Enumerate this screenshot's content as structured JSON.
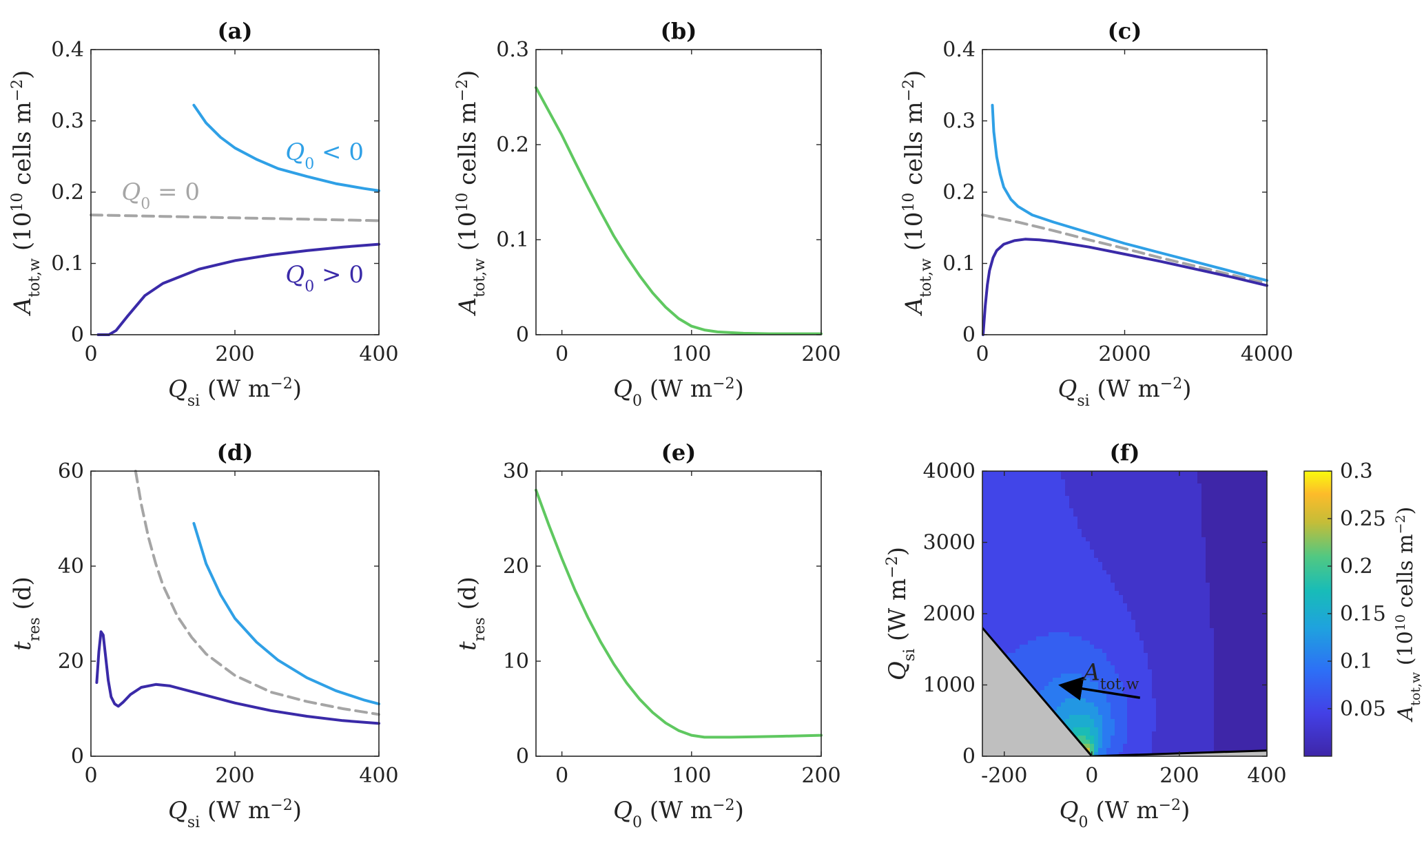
{
  "chart_data": [
    {
      "panel": "a",
      "type": "line",
      "title": "(a)",
      "xlabel": "Q_si (W m^-2)",
      "ylabel": "A_tot,w (10^10 cells m^-2)",
      "xlim": [
        0,
        400
      ],
      "ylim": [
        0,
        0.4
      ],
      "xticks": [
        0,
        200,
        400
      ],
      "xtick_labels": [
        "0",
        "200",
        "400"
      ],
      "yticks": [
        0,
        0.1,
        0.2,
        0.3,
        0.4
      ],
      "ytick_labels": [
        "0",
        "0.1",
        "0.2",
        "0.3",
        "0.4"
      ],
      "series": [
        {
          "name": "Q0 < 0",
          "label_text": "Q0 < 0",
          "color": "#2fa0e6",
          "style": "solid",
          "x": [
            143,
            160,
            180,
            200,
            230,
            260,
            300,
            340,
            380,
            400
          ],
          "y": [
            0.322,
            0.297,
            0.277,
            0.262,
            0.246,
            0.233,
            0.222,
            0.212,
            0.205,
            0.202
          ]
        },
        {
          "name": "Q0 = 0",
          "label_text": "Q0 = 0",
          "color": "#a5a5a5",
          "style": "dashed",
          "x": [
            0,
            100,
            200,
            300,
            400
          ],
          "y": [
            0.168,
            0.166,
            0.164,
            0.162,
            0.16
          ]
        },
        {
          "name": "Q0 > 0",
          "label_text": "Q0 > 0",
          "color": "#3a2aa8",
          "style": "solid",
          "x": [
            10,
            25,
            35,
            50,
            75,
            100,
            150,
            200,
            250,
            300,
            350,
            400
          ],
          "y": [
            0.0,
            0.0,
            0.006,
            0.025,
            0.055,
            0.072,
            0.092,
            0.104,
            0.112,
            0.118,
            0.123,
            0.127
          ]
        }
      ]
    },
    {
      "panel": "b",
      "type": "line",
      "title": "(b)",
      "xlabel": "Q_0 (W m^-2)",
      "ylabel": "A_tot,w (10^10 cells m^-2)",
      "xlim": [
        -20,
        200
      ],
      "ylim": [
        0,
        0.3
      ],
      "xticks": [
        0,
        100,
        200
      ],
      "xtick_labels": [
        "0",
        "100",
        "200"
      ],
      "yticks": [
        0,
        0.1,
        0.2,
        0.3
      ],
      "ytick_labels": [
        "0",
        "0.1",
        "0.2",
        "0.3"
      ],
      "series": [
        {
          "color": "#5fc860",
          "style": "solid",
          "x": [
            -20,
            -10,
            0,
            10,
            20,
            30,
            40,
            50,
            60,
            70,
            80,
            90,
            100,
            110,
            120,
            140,
            160,
            200
          ],
          "y": [
            0.26,
            0.235,
            0.21,
            0.182,
            0.155,
            0.129,
            0.104,
            0.082,
            0.062,
            0.044,
            0.029,
            0.017,
            0.009,
            0.005,
            0.003,
            0.0015,
            0.001,
            0.001
          ]
        }
      ]
    },
    {
      "panel": "c",
      "type": "line",
      "title": "(c)",
      "xlabel": "Q_si (W m^-2)",
      "ylabel": "A_tot,w (10^10 cells m^-2)",
      "xlim": [
        0,
        4000
      ],
      "ylim": [
        0,
        0.4
      ],
      "xticks": [
        0,
        2000,
        4000
      ],
      "xtick_labels": [
        "0",
        "2000",
        "4000"
      ],
      "yticks": [
        0,
        0.1,
        0.2,
        0.3,
        0.4
      ],
      "ytick_labels": [
        "0",
        "0.1",
        "0.2",
        "0.3",
        "0.4"
      ],
      "series": [
        {
          "color": "#2fa0e6",
          "style": "solid",
          "x": [
            140,
            160,
            200,
            250,
            300,
            400,
            500,
            700,
            1000,
            1500,
            2000,
            2500,
            3000,
            3500,
            4000
          ],
          "y": [
            0.322,
            0.285,
            0.25,
            0.225,
            0.207,
            0.19,
            0.18,
            0.168,
            0.158,
            0.143,
            0.128,
            0.115,
            0.102,
            0.089,
            0.076
          ]
        },
        {
          "color": "#a5a5a5",
          "style": "dashed",
          "x": [
            0,
            500,
            1000,
            1500,
            2000,
            2500,
            3000,
            3500,
            4000
          ],
          "y": [
            0.168,
            0.158,
            0.146,
            0.133,
            0.121,
            0.108,
            0.096,
            0.084,
            0.072
          ]
        },
        {
          "color": "#3a2aa8",
          "style": "solid",
          "x": [
            10,
            40,
            70,
            100,
            150,
            200,
            300,
            450,
            600,
            800,
            1000,
            1500,
            2000,
            2500,
            3000,
            3500,
            4000
          ],
          "y": [
            0.0,
            0.04,
            0.07,
            0.09,
            0.108,
            0.118,
            0.127,
            0.132,
            0.134,
            0.133,
            0.131,
            0.123,
            0.113,
            0.103,
            0.092,
            0.081,
            0.069
          ]
        }
      ]
    },
    {
      "panel": "d",
      "type": "line",
      "title": "(d)",
      "xlabel": "Q_si (W m^-2)",
      "ylabel": "t_res (d)",
      "xlim": [
        0,
        400
      ],
      "ylim": [
        0,
        60
      ],
      "xticks": [
        0,
        200,
        400
      ],
      "xtick_labels": [
        "0",
        "200",
        "400"
      ],
      "yticks": [
        0,
        20,
        40,
        60
      ],
      "ytick_labels": [
        "0",
        "20",
        "40",
        "60"
      ],
      "series": [
        {
          "color": "#2fa0e6",
          "style": "solid",
          "x": [
            143,
            160,
            180,
            200,
            230,
            260,
            300,
            340,
            380,
            400
          ],
          "y": [
            49,
            40.5,
            34,
            29,
            24,
            20.2,
            16.5,
            13.8,
            11.8,
            11
          ]
        },
        {
          "color": "#a5a5a5",
          "style": "dashed",
          "x": [
            62,
            70,
            80,
            90,
            100,
            120,
            140,
            160,
            200,
            250,
            300,
            350,
            400
          ],
          "y": [
            60,
            53,
            46,
            40.5,
            36,
            29.5,
            25,
            21.5,
            17,
            13.5,
            11.5,
            10,
            8.8
          ]
        },
        {
          "color": "#3a2aa8",
          "style": "solid",
          "x": [
            8,
            11,
            14,
            17,
            20,
            24,
            28,
            33,
            38,
            45,
            55,
            70,
            90,
            110,
            150,
            200,
            250,
            300,
            350,
            400
          ],
          "y": [
            15.5,
            22,
            26.2,
            25.5,
            21.5,
            16,
            12.5,
            11,
            10.5,
            11.4,
            13,
            14.5,
            15.1,
            14.8,
            13.2,
            11.2,
            9.6,
            8.4,
            7.5,
            6.9
          ]
        }
      ]
    },
    {
      "panel": "e",
      "type": "line",
      "title": "(e)",
      "xlabel": "Q_0 (W m^-2)",
      "ylabel": "t_res (d)",
      "xlim": [
        -20,
        200
      ],
      "ylim": [
        0,
        30
      ],
      "xticks": [
        0,
        100,
        200
      ],
      "xtick_labels": [
        "0",
        "100",
        "200"
      ],
      "yticks": [
        0,
        10,
        20,
        30
      ],
      "ytick_labels": [
        "0",
        "10",
        "20",
        "30"
      ],
      "series": [
        {
          "color": "#5fc860",
          "style": "solid",
          "x": [
            -20,
            -10,
            0,
            10,
            20,
            30,
            40,
            50,
            60,
            70,
            80,
            90,
            100,
            110,
            130,
            150,
            170,
            200
          ],
          "y": [
            28,
            24.3,
            20.8,
            17.5,
            14.6,
            12,
            9.7,
            7.7,
            6,
            4.6,
            3.5,
            2.7,
            2.2,
            2.0,
            2.0,
            2.05,
            2.1,
            2.2
          ]
        }
      ]
    },
    {
      "panel": "f",
      "type": "heatmap",
      "title": "(f)",
      "xlabel": "Q_0 (W m^-2)",
      "ylabel": "Q_si (W m^-2)",
      "xlim": [
        -250,
        400
      ],
      "ylim": [
        0,
        4000
      ],
      "xticks": [
        -200,
        0,
        200,
        400
      ],
      "xtick_labels": [
        "-200",
        "0",
        "200",
        "400"
      ],
      "yticks": [
        0,
        1000,
        2000,
        3000,
        4000
      ],
      "ytick_labels": [
        "0",
        "1000",
        "2000",
        "3000",
        "4000"
      ],
      "colorbar": {
        "label": "A_tot,w (10^10 cells m^-2)",
        "min": 0,
        "max": 0.3,
        "ticks": [
          0.05,
          0.1,
          0.15,
          0.2,
          0.25,
          0.3
        ],
        "tick_labels": [
          "0.05",
          "0.1",
          "0.15",
          "0.2",
          "0.25",
          "0.3"
        ]
      },
      "grey_region_boundary_left": {
        "Q0": [
          -250,
          0
        ],
        "Qsi": [
          1800,
          0
        ]
      },
      "grey_region_boundary_right": {
        "Q0": [
          0,
          400
        ],
        "Qsi": [
          0,
          80
        ]
      },
      "annotation": {
        "text": "A_tot,w",
        "arrow_from": [
          110,
          820
        ],
        "arrow_to": [
          -55,
          980
        ]
      }
    }
  ]
}
